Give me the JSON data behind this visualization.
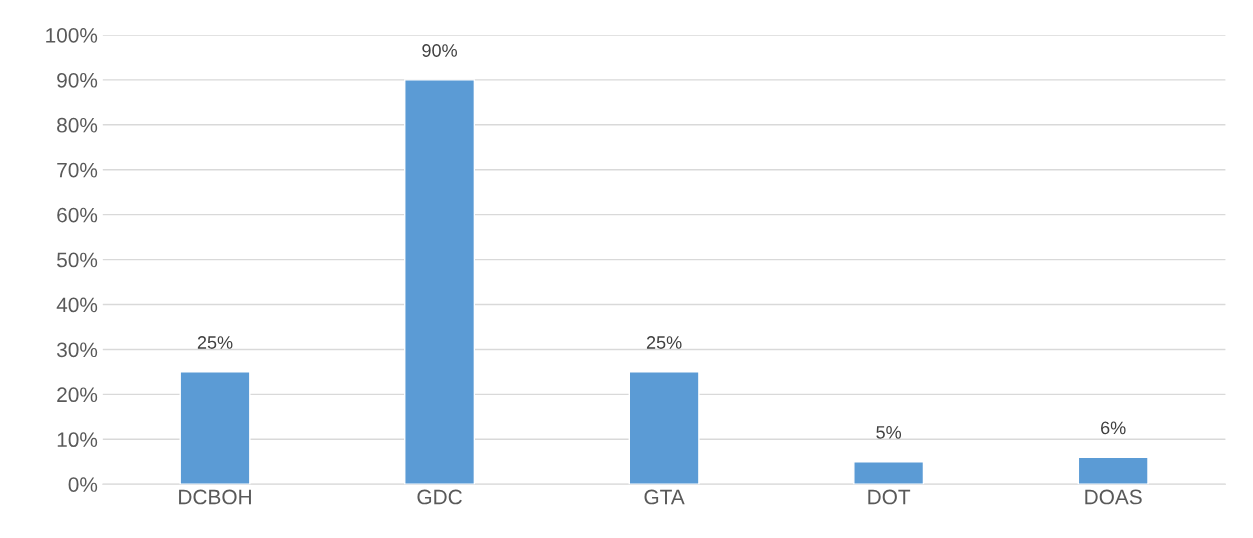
{
  "chart_data": {
    "type": "bar",
    "categories": [
      "DCBOH",
      "GDC",
      "GTA",
      "DOT",
      "DOAS"
    ],
    "values": [
      25,
      90,
      25,
      5,
      6
    ],
    "color": "#5b9bd5",
    "value_labels": [
      "25%",
      "90%",
      "25%",
      "5%",
      "6%"
    ],
    "ylim": [
      0,
      100
    ],
    "yticks": [
      {
        "value": 0,
        "label": "0%"
      },
      {
        "value": 10,
        "label": "10%"
      },
      {
        "value": 20,
        "label": "20%"
      },
      {
        "value": 30,
        "label": "30%"
      },
      {
        "value": 40,
        "label": "40%"
      },
      {
        "value": 50,
        "label": "50%"
      },
      {
        "value": 60,
        "label": "60%"
      },
      {
        "value": 70,
        "label": "70%"
      },
      {
        "value": 80,
        "label": "80%"
      },
      {
        "value": 90,
        "label": "90%"
      },
      {
        "value": 100,
        "label": "100%"
      }
    ],
    "grid": "y"
  }
}
